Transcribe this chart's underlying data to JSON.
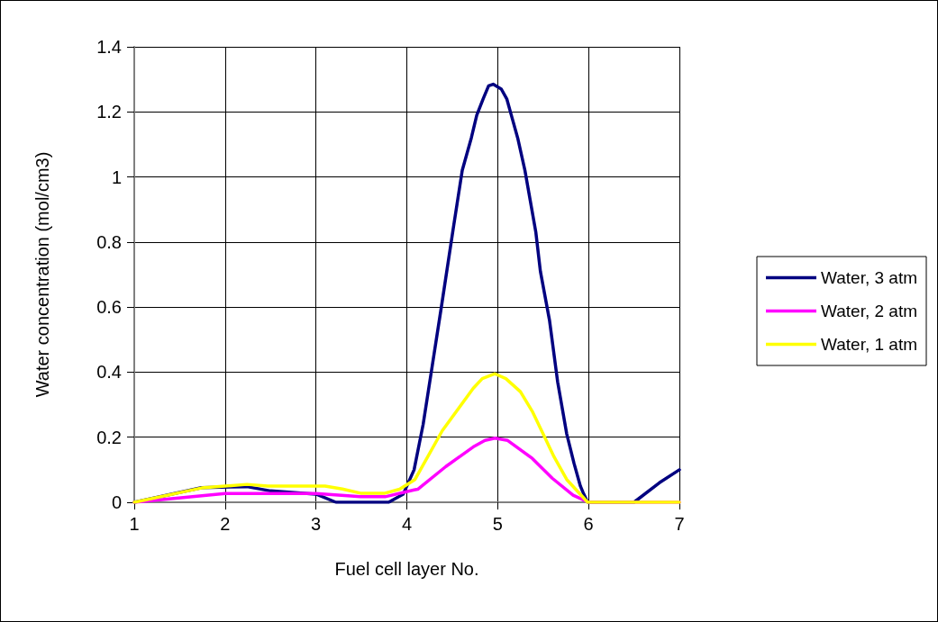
{
  "chart_data": {
    "type": "line",
    "xlabel": "Fuel cell layer No.",
    "ylabel": "Water concentration (mol/cm3)",
    "xlim": [
      1,
      7
    ],
    "xticks": [
      1,
      2,
      3,
      4,
      5,
      6,
      7
    ],
    "ylim": [
      0,
      1.4
    ],
    "yticks": [
      0,
      0.2,
      0.4,
      0.6,
      0.8,
      1,
      1.2,
      1.4
    ],
    "grid": true,
    "legend": "right",
    "marker": "none",
    "line_style": "solid",
    "series": [
      {
        "name": "Water, 3 atm",
        "color": "#000080",
        "x": [
          1,
          1.74,
          2.24,
          2.5,
          3.0,
          3.22,
          3.5,
          3.8,
          3.96,
          4.08,
          4.18,
          4.28,
          4.38,
          4.51,
          4.61,
          4.71,
          4.77,
          4.84,
          4.9,
          4.95,
          5.04,
          5.1,
          5.15,
          5.22,
          5.3,
          5.42,
          5.47,
          5.57,
          5.66,
          5.76,
          5.84,
          5.91,
          5.94,
          5.99,
          6.5,
          6.78,
          7
        ],
        "values": [
          0,
          0.045,
          0.048,
          0.035,
          0.025,
          0,
          0,
          0,
          0.025,
          0.1,
          0.24,
          0.42,
          0.6,
          0.84,
          1.02,
          1.12,
          1.19,
          1.24,
          1.28,
          1.285,
          1.27,
          1.24,
          1.19,
          1.12,
          1.02,
          0.83,
          0.71,
          0.56,
          0.37,
          0.21,
          0.12,
          0.05,
          0.03,
          0,
          0,
          0.06,
          0.1
        ]
      },
      {
        "name": "Water, 2 atm",
        "color": "#ff00ff",
        "x": [
          1,
          2,
          3,
          3.49,
          3.76,
          4.08,
          4.12,
          4.43,
          4.73,
          4.86,
          4.97,
          5.11,
          5.38,
          5.6,
          5.83,
          6,
          7
        ],
        "values": [
          0,
          0.027,
          0.027,
          0.017,
          0.017,
          0.038,
          0.04,
          0.11,
          0.17,
          0.19,
          0.197,
          0.19,
          0.135,
          0.074,
          0.022,
          0,
          0
        ]
      },
      {
        "name": "Water, 1 atm",
        "color": "#ffff00",
        "x": [
          1,
          1.74,
          2.24,
          2.47,
          3.1,
          3.29,
          3.49,
          3.76,
          3.92,
          4.09,
          4.39,
          4.73,
          4.83,
          4.97,
          5.09,
          5.25,
          5.38,
          5.5,
          5.62,
          5.76,
          5.99,
          7
        ],
        "values": [
          0,
          0.044,
          0.055,
          0.05,
          0.05,
          0.041,
          0.028,
          0.028,
          0.04,
          0.07,
          0.22,
          0.35,
          0.38,
          0.395,
          0.38,
          0.34,
          0.28,
          0.21,
          0.14,
          0.07,
          0,
          0
        ]
      }
    ]
  }
}
